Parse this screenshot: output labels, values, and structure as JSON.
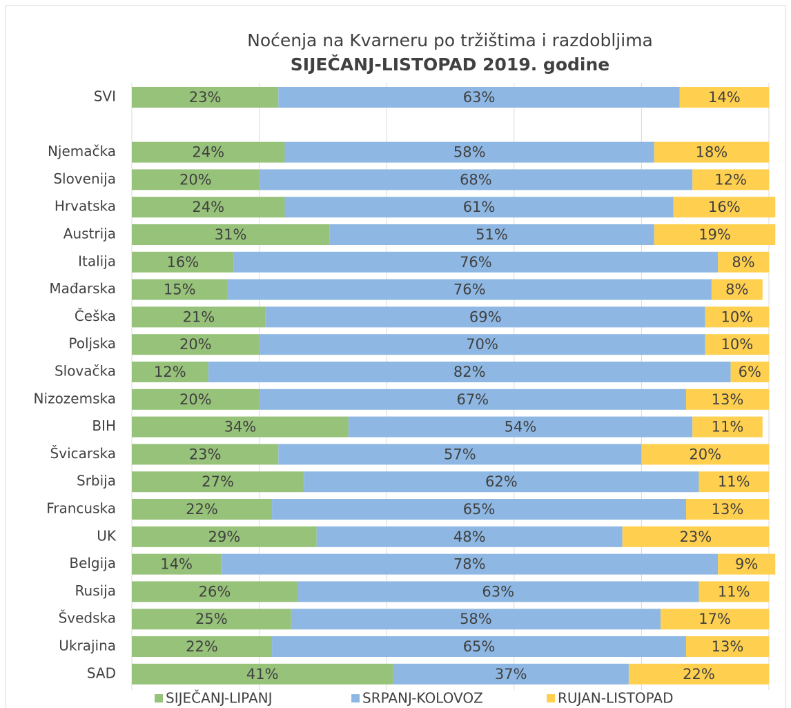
{
  "chart_data": {
    "type": "stacked-bar-horizontal",
    "title": "Noćenja na Kvarneru po tržištima i razdobljima",
    "subtitle": "SIJEČANJ-LISTOPAD 2019. godine",
    "categories": [
      "SVI",
      null,
      "Njemačka",
      "Slovenija",
      "Hrvatska",
      "Austrija",
      "Italija",
      "Mađarska",
      "Češka",
      "Poljska",
      "Slovačka",
      "Nizozemska",
      "BIH",
      "Švicarska",
      "Srbija",
      "Francuska",
      "UK",
      "Belgija",
      "Rusija",
      "Švedska",
      "Ukrajina",
      "SAD"
    ],
    "series": [
      {
        "name": "SIJEČANJ-LIPANJ",
        "color": "#97c27a",
        "values": [
          23,
          null,
          24,
          20,
          24,
          31,
          16,
          15,
          21,
          20,
          12,
          20,
          34,
          23,
          27,
          22,
          29,
          14,
          26,
          25,
          22,
          41
        ],
        "value_labels": [
          "23%",
          null,
          "24%",
          "20%",
          "24%",
          "31%",
          "16%",
          "15%",
          "21%",
          "20%",
          "12%",
          "20%",
          "34%",
          "23%",
          "27%",
          "22%",
          "29%",
          "14%",
          "26%",
          "25%",
          "22%",
          "41%"
        ]
      },
      {
        "name": "SRPANJ-KOLOVOZ",
        "color": "#8eb8e3",
        "values": [
          63,
          null,
          58,
          68,
          61,
          51,
          76,
          76,
          69,
          70,
          82,
          67,
          54,
          57,
          62,
          65,
          48,
          78,
          63,
          58,
          65,
          37
        ],
        "value_labels": [
          "63%",
          null,
          "58%",
          "68%",
          "61%",
          "51%",
          "76%",
          "76%",
          "69%",
          "70%",
          "82%",
          "67%",
          "54%",
          "57%",
          "62%",
          "65%",
          "48%",
          "78%",
          "63%",
          "58%",
          "65%",
          "37%"
        ]
      },
      {
        "name": "RUJAN-LISTOPAD",
        "color": "#ffd04f",
        "values": [
          14,
          null,
          18,
          12,
          16,
          19,
          8,
          8,
          10,
          10,
          6,
          13,
          11,
          20,
          11,
          13,
          23,
          9,
          11,
          17,
          13,
          22
        ],
        "value_labels": [
          "14%",
          null,
          "18%",
          "12%",
          "16%",
          "19%",
          "8%",
          "8%",
          "10%",
          "10%",
          "6%",
          "13%",
          "11%",
          "20%",
          "11%",
          "13%",
          "23%",
          "9%",
          "11%",
          "17%",
          "13%",
          "22%"
        ]
      }
    ],
    "xlim": [
      0,
      100
    ],
    "xticks": [
      0,
      20,
      40,
      60,
      80,
      100
    ],
    "grid": true,
    "legend": "bottom"
  }
}
